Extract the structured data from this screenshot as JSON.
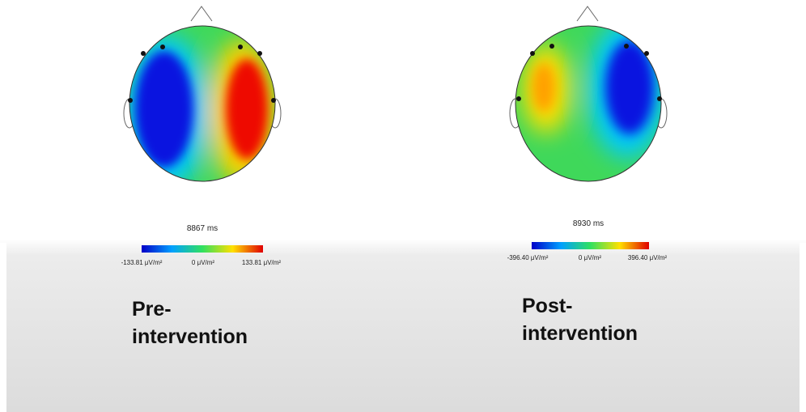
{
  "panels": [
    {
      "time": "8867 ms",
      "colorbar_labels": [
        "-133.81 μV/m²",
        "0 μV/m²",
        "133.81 μV/m²"
      ],
      "caption": [
        "Pre-",
        "intervention"
      ]
    },
    {
      "time": "8930 ms",
      "colorbar_labels": [
        "-396.40 μV/m²",
        "0 μV/m²",
        "396.40 μV/m²"
      ],
      "caption": [
        "Post-",
        "intervention"
      ]
    }
  ]
}
